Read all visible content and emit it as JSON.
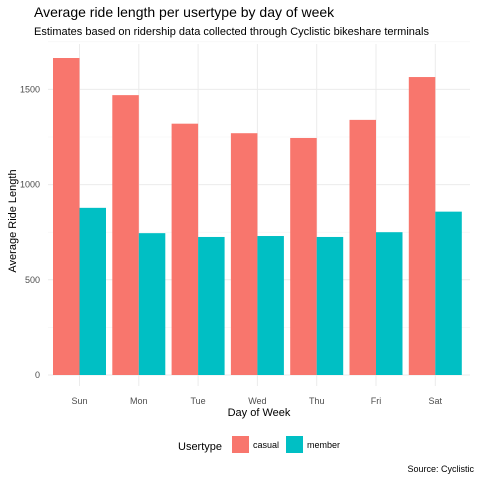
{
  "chart_data": {
    "type": "bar",
    "title": "Average ride length per usertype by day of week",
    "subtitle": "Estimates based on ridership data collected through Cyclistic bikeshare terminals",
    "xlabel": "Day of Week",
    "ylabel": "Average Ride Length",
    "caption": "Source: Cyclistic",
    "categories": [
      "Sun",
      "Mon",
      "Tue",
      "Wed",
      "Thu",
      "Fri",
      "Sat"
    ],
    "series": [
      {
        "name": "casual",
        "color": "#F8766D",
        "values": [
          1665,
          1470,
          1320,
          1270,
          1245,
          1340,
          1565
        ]
      },
      {
        "name": "member",
        "color": "#00BFC4",
        "values": [
          878,
          745,
          725,
          730,
          725,
          750,
          858
        ]
      }
    ],
    "ylim": [
      0,
      1760
    ],
    "yticks": [
      0,
      500,
      1000,
      1500
    ],
    "grid": true,
    "legend": {
      "title": "Usertype",
      "position": "bottom"
    }
  }
}
